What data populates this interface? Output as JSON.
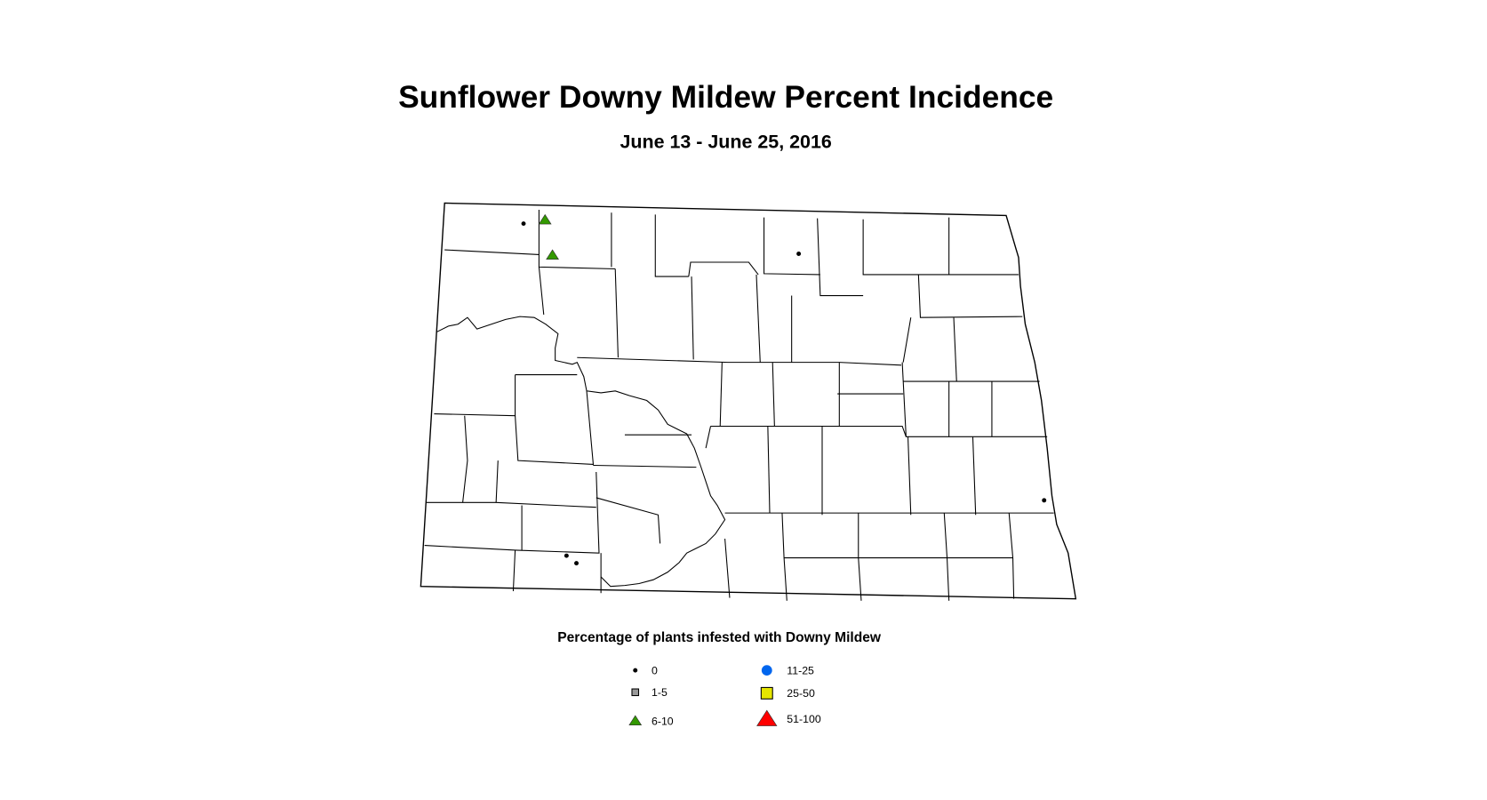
{
  "title": "Sunflower Downy Mildew Percent Incidence",
  "subtitle": "June 13 - June 25, 2016",
  "legend": {
    "title": "Percentage of plants infested with Downy Mildew",
    "classes": [
      {
        "label": "0",
        "symbol": "dot",
        "color": "#000000"
      },
      {
        "label": "1-5",
        "symbol": "square",
        "color": "#999999"
      },
      {
        "label": "6-10",
        "symbol": "triangle",
        "color": "#339900"
      },
      {
        "label": "11-25",
        "symbol": "circle",
        "color": "#0066ee"
      },
      {
        "label": "25-50",
        "symbol": "square",
        "color": "#e6e600"
      },
      {
        "label": "51-100",
        "symbol": "triangle",
        "color": "#ff0000"
      }
    ]
  },
  "observations": [
    {
      "lon": -102.91,
      "lat": 48.89,
      "class": "0"
    },
    {
      "lon": -102.65,
      "lat": 48.92,
      "class": "6-10"
    },
    {
      "lon": -102.56,
      "lat": 48.64,
      "class": "6-10"
    },
    {
      "lon": -99.58,
      "lat": 48.65,
      "class": "0"
    },
    {
      "lon": -96.61,
      "lat": 46.69,
      "class": "0"
    },
    {
      "lon": -102.39,
      "lat": 46.25,
      "class": "0"
    },
    {
      "lon": -102.27,
      "lat": 46.19,
      "class": "0"
    }
  ]
}
